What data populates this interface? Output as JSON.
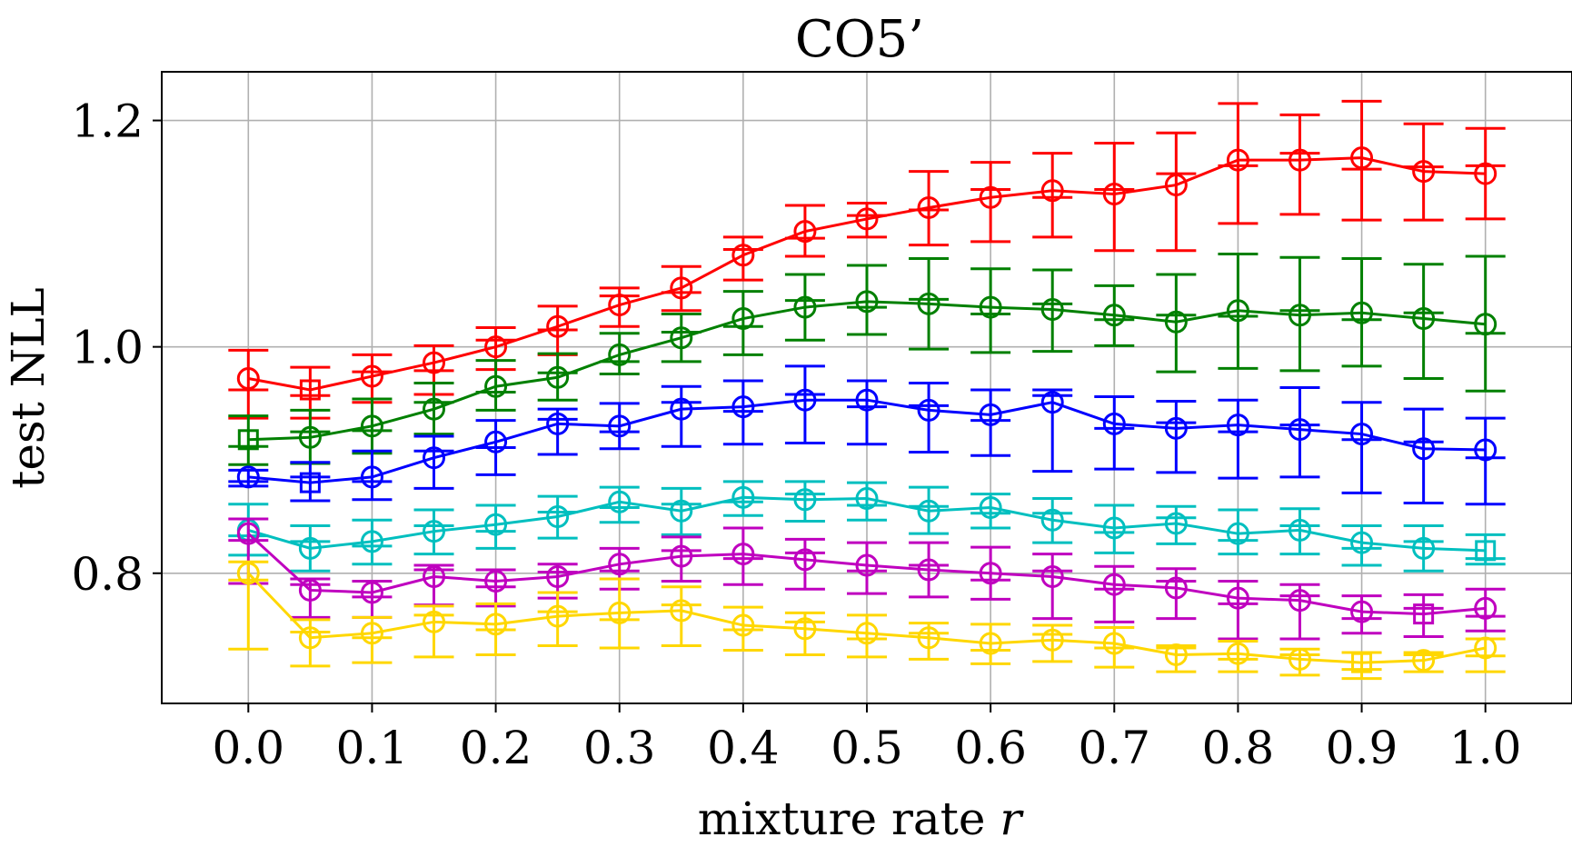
{
  "chart_data": {
    "type": "line",
    "title": "CO5’",
    "xlabel": "mixture rate",
    "xlabel_var": "r",
    "ylabel": "test NLL",
    "xlim": [
      -0.07,
      1.07
    ],
    "ylim": [
      0.685,
      1.243
    ],
    "x_ticks": [
      0.0,
      0.1,
      0.2,
      0.3,
      0.4,
      0.5,
      0.6,
      0.7,
      0.8,
      0.9,
      1.0
    ],
    "x_tick_labels": [
      "0.0",
      "0.1",
      "0.2",
      "0.3",
      "0.4",
      "0.5",
      "0.6",
      "0.7",
      "0.8",
      "0.9",
      "1.0"
    ],
    "y_ticks": [
      0.8,
      1.0,
      1.2
    ],
    "y_tick_labels": [
      "0.8",
      "1.0",
      "1.2"
    ],
    "grid": true,
    "x": [
      0.0,
      0.05,
      0.1,
      0.15,
      0.2,
      0.25,
      0.3,
      0.35,
      0.4,
      0.45,
      0.5,
      0.55,
      0.6,
      0.65,
      0.7,
      0.75,
      0.8,
      0.85,
      0.9,
      0.95,
      1.0
    ],
    "series": [
      {
        "name": "red",
        "color": "#ff0000",
        "values": [
          0.972,
          0.962,
          0.974,
          0.986,
          1.0,
          1.018,
          1.037,
          1.052,
          1.081,
          1.102,
          1.113,
          1.123,
          1.132,
          1.138,
          1.135,
          1.143,
          1.165,
          1.165,
          1.167,
          1.155,
          1.153
        ],
        "err_upper": [
          0.997,
          0.982,
          0.993,
          1.001,
          1.017,
          1.036,
          1.052,
          1.071,
          1.097,
          1.125,
          1.127,
          1.155,
          1.163,
          1.171,
          1.18,
          1.189,
          1.215,
          1.205,
          1.217,
          1.197,
          1.193
        ],
        "err_lower": [
          0.937,
          0.937,
          0.951,
          0.958,
          0.98,
          0.993,
          1.018,
          1.032,
          1.059,
          1.08,
          1.097,
          1.09,
          1.093,
          1.097,
          1.085,
          1.085,
          1.109,
          1.117,
          1.112,
          1.112,
          1.113
        ],
        "band_offsets": [
          -0.01,
          -0.005,
          0.004,
          -0.007,
          0.006,
          -0.003,
          0.008,
          -0.004,
          0.005,
          -0.006,
          0.003,
          -0.002,
          0.007,
          -0.006,
          0.004,
          0.01,
          -0.005,
          0.006,
          -0.01,
          0.004,
          0.007
        ],
        "markers": [
          "circle",
          "square",
          "circle",
          "circle",
          "circle",
          "circle",
          "circle",
          "circle",
          "circle",
          "circle",
          "circle",
          "circle",
          "circle",
          "circle",
          "circle",
          "circle",
          "circle",
          "circle",
          "circle",
          "circle",
          "circle"
        ]
      },
      {
        "name": "green",
        "color": "#008000",
        "values": [
          0.918,
          0.92,
          0.93,
          0.945,
          0.965,
          0.973,
          0.993,
          1.008,
          1.025,
          1.035,
          1.04,
          1.038,
          1.035,
          1.033,
          1.028,
          1.022,
          1.032,
          1.028,
          1.03,
          1.025,
          1.02
        ],
        "err_upper": [
          0.939,
          0.944,
          0.954,
          0.968,
          0.988,
          0.994,
          1.012,
          1.029,
          1.049,
          1.064,
          1.072,
          1.078,
          1.069,
          1.068,
          1.054,
          1.064,
          1.082,
          1.079,
          1.078,
          1.073,
          1.08
        ],
        "err_lower": [
          0.896,
          0.897,
          0.906,
          0.923,
          0.944,
          0.953,
          0.976,
          0.987,
          0.993,
          1.006,
          1.011,
          0.998,
          0.995,
          0.996,
          1.001,
          0.978,
          0.981,
          0.979,
          0.983,
          0.972,
          0.961
        ],
        "band_offsets": [
          -0.006,
          0.005,
          -0.004,
          0.006,
          -0.005,
          0.004,
          -0.006,
          0.005,
          -0.007,
          0.006,
          -0.005,
          0.004,
          -0.006,
          0.005,
          -0.004,
          0.006,
          -0.005,
          0.004,
          -0.006,
          0.005,
          -0.008
        ],
        "markers": [
          "square",
          "circle",
          "circle",
          "circle",
          "circle",
          "circle",
          "circle",
          "circle",
          "circle",
          "circle",
          "circle",
          "circle",
          "circle",
          "circle",
          "circle",
          "circle",
          "circle",
          "circle",
          "circle",
          "circle",
          "circle"
        ]
      },
      {
        "name": "blue",
        "color": "#0000ff",
        "values": [
          0.885,
          0.88,
          0.885,
          0.902,
          0.916,
          0.932,
          0.93,
          0.945,
          0.947,
          0.953,
          0.953,
          0.944,
          0.94,
          0.951,
          0.932,
          0.928,
          0.931,
          0.927,
          0.923,
          0.91,
          0.909
        ],
        "err_upper": [
          0.891,
          0.898,
          0.908,
          0.921,
          0.935,
          0.945,
          0.95,
          0.965,
          0.97,
          0.983,
          0.97,
          0.968,
          0.962,
          0.962,
          0.956,
          0.952,
          0.953,
          0.964,
          0.951,
          0.945,
          0.937
        ],
        "err_lower": [
          0.877,
          0.864,
          0.865,
          0.875,
          0.887,
          0.905,
          0.91,
          0.912,
          0.914,
          0.915,
          0.914,
          0.907,
          0.904,
          0.89,
          0.892,
          0.889,
          0.884,
          0.885,
          0.871,
          0.862,
          0.861
        ],
        "band_offsets": [
          -0.004,
          0.005,
          -0.004,
          0.006,
          -0.005,
          0.004,
          -0.005,
          0.006,
          -0.004,
          0.005,
          -0.006,
          0.004,
          -0.005,
          0.006,
          -0.004,
          0.005,
          -0.006,
          0.004,
          -0.005,
          0.006,
          -0.007
        ],
        "markers": [
          "circle",
          "square",
          "circle",
          "circle",
          "circle",
          "circle",
          "circle",
          "circle",
          "circle",
          "circle",
          "circle",
          "circle",
          "circle",
          "circle",
          "circle",
          "circle",
          "circle",
          "circle",
          "circle",
          "circle",
          "circle"
        ]
      },
      {
        "name": "cyan",
        "color": "#00bfbf",
        "values": [
          0.838,
          0.822,
          0.828,
          0.837,
          0.843,
          0.85,
          0.863,
          0.855,
          0.867,
          0.865,
          0.866,
          0.855,
          0.858,
          0.847,
          0.84,
          0.844,
          0.835,
          0.838,
          0.827,
          0.822,
          0.82
        ],
        "err_upper": [
          0.861,
          0.842,
          0.847,
          0.856,
          0.86,
          0.868,
          0.876,
          0.875,
          0.881,
          0.881,
          0.88,
          0.876,
          0.87,
          0.866,
          0.86,
          0.859,
          0.856,
          0.857,
          0.842,
          0.842,
          0.834
        ],
        "err_lower": [
          0.816,
          0.802,
          0.808,
          0.817,
          0.822,
          0.831,
          0.845,
          0.834,
          0.851,
          0.846,
          0.847,
          0.835,
          0.84,
          0.827,
          0.818,
          0.826,
          0.817,
          0.817,
          0.807,
          0.802,
          0.808
        ],
        "band_offsets": [
          -0.005,
          0.006,
          -0.004,
          0.005,
          -0.006,
          0.004,
          -0.005,
          0.006,
          -0.004,
          0.005,
          -0.006,
          0.004,
          -0.005,
          0.006,
          -0.004,
          0.005,
          -0.006,
          0.004,
          -0.005,
          0.006,
          -0.007
        ],
        "markers": [
          "circle",
          "circle",
          "circle",
          "circle",
          "circle",
          "circle",
          "circle",
          "circle",
          "circle",
          "circle",
          "circle",
          "circle",
          "circle",
          "circle",
          "circle",
          "circle",
          "circle",
          "circle",
          "circle",
          "circle",
          "square"
        ]
      },
      {
        "name": "magenta",
        "color": "#bf00bf",
        "values": [
          0.835,
          0.785,
          0.783,
          0.797,
          0.793,
          0.797,
          0.808,
          0.815,
          0.817,
          0.812,
          0.807,
          0.803,
          0.8,
          0.797,
          0.79,
          0.787,
          0.778,
          0.776,
          0.766,
          0.764,
          0.769
        ],
        "err_upper": [
          0.848,
          0.795,
          0.793,
          0.807,
          0.803,
          0.808,
          0.822,
          0.832,
          0.84,
          0.83,
          0.827,
          0.827,
          0.823,
          0.817,
          0.806,
          0.804,
          0.793,
          0.79,
          0.78,
          0.781,
          0.786
        ],
        "err_lower": [
          0.791,
          0.761,
          0.761,
          0.772,
          0.771,
          0.778,
          0.786,
          0.793,
          0.79,
          0.786,
          0.782,
          0.779,
          0.777,
          0.76,
          0.757,
          0.76,
          0.742,
          0.742,
          0.747,
          0.744,
          0.749
        ],
        "band_offsets": [
          -0.006,
          0.005,
          -0.004,
          0.006,
          -0.005,
          0.004,
          -0.006,
          0.005,
          -0.004,
          0.006,
          -0.005,
          0.004,
          -0.006,
          0.005,
          -0.004,
          0.006,
          -0.005,
          0.004,
          -0.006,
          0.005,
          -0.007
        ],
        "markers": [
          "circle",
          "circle",
          "circle",
          "circle",
          "circle",
          "circle",
          "circle",
          "circle",
          "circle",
          "circle",
          "circle",
          "circle",
          "circle",
          "circle",
          "circle",
          "circle",
          "circle",
          "circle",
          "circle",
          "square",
          "circle"
        ]
      },
      {
        "name": "gold",
        "color": "#ffd700",
        "values": [
          0.8,
          0.743,
          0.747,
          0.757,
          0.755,
          0.762,
          0.765,
          0.767,
          0.754,
          0.751,
          0.747,
          0.743,
          0.738,
          0.741,
          0.738,
          0.728,
          0.729,
          0.724,
          0.721,
          0.723,
          0.734
        ],
        "err_upper": [
          0.81,
          0.759,
          0.761,
          0.771,
          0.773,
          0.783,
          0.795,
          0.788,
          0.77,
          0.765,
          0.763,
          0.756,
          0.755,
          0.754,
          0.752,
          0.736,
          0.74,
          0.733,
          0.73,
          0.73,
          0.742
        ],
        "err_lower": [
          0.733,
          0.718,
          0.721,
          0.726,
          0.728,
          0.736,
          0.734,
          0.736,
          0.732,
          0.728,
          0.726,
          0.724,
          0.72,
          0.722,
          0.717,
          0.713,
          0.713,
          0.71,
          0.707,
          0.713,
          0.713
        ],
        "band_offsets": [
          -0.006,
          0.005,
          -0.004,
          0.006,
          -0.005,
          0.004,
          -0.006,
          0.005,
          -0.004,
          0.006,
          -0.005,
          0.004,
          -0.006,
          0.005,
          -0.004,
          0.006,
          -0.005,
          0.004,
          -0.006,
          0.005,
          -0.007
        ],
        "markers": [
          "circle",
          "circle",
          "circle",
          "circle",
          "circle",
          "circle",
          "circle",
          "circle",
          "circle",
          "circle",
          "circle",
          "circle",
          "circle",
          "circle",
          "circle",
          "circle",
          "circle",
          "circle",
          "square",
          "circle",
          "circle"
        ]
      }
    ]
  }
}
